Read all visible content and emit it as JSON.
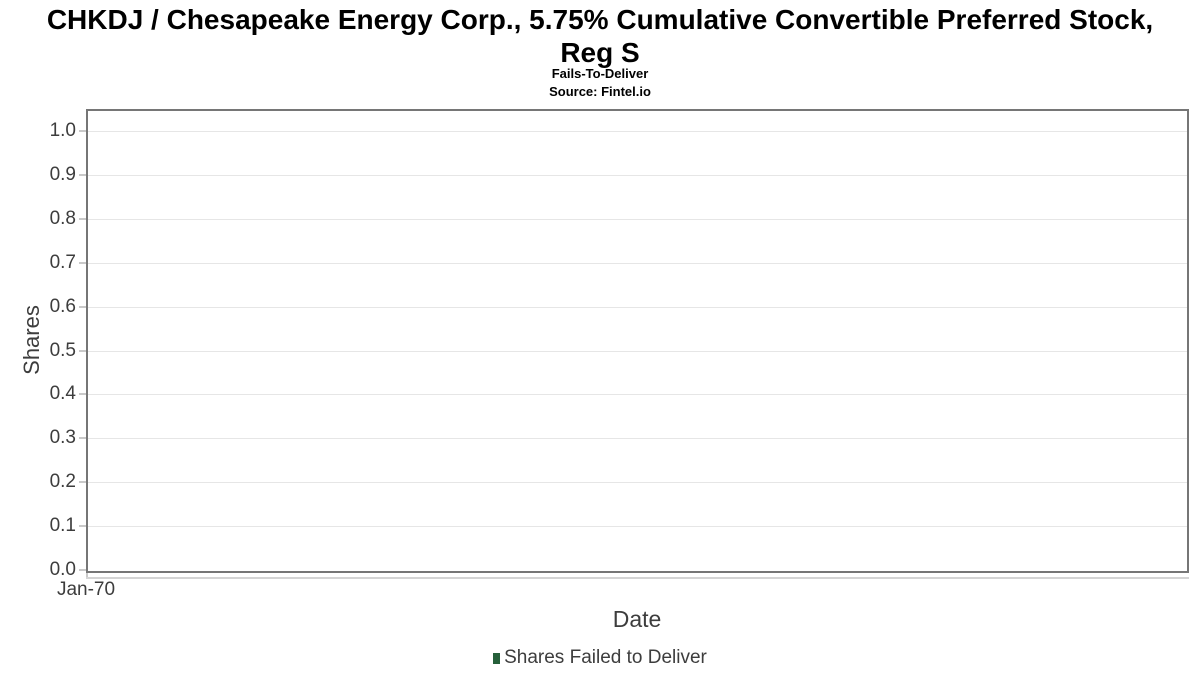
{
  "header": {
    "title_line1": "CHKDJ / Chesapeake Energy Corp., 5.75% Cumulative Convertible Preferred Stock,",
    "title_line2": "Reg S",
    "subtitle": "Fails-To-Deliver",
    "source": "Source: Fintel.io"
  },
  "chart_data": {
    "type": "bar",
    "title": "CHKDJ / Chesapeake Energy Corp., 5.75% Cumulative Convertible Preferred Stock, Reg S",
    "subtitle": "Fails-To-Deliver",
    "source": "Source: Fintel.io",
    "xlabel": "Date",
    "ylabel": "Shares",
    "x_ticks": [
      "Jan-70"
    ],
    "y_ticks": [
      "0.0",
      "0.1",
      "0.2",
      "0.3",
      "0.4",
      "0.5",
      "0.6",
      "0.7",
      "0.8",
      "0.9",
      "1.0"
    ],
    "ylim": [
      0,
      1.05
    ],
    "grid": true,
    "legend_position": "bottom",
    "series": [
      {
        "name": "Shares Failed to Deliver",
        "color": "#26603a",
        "values": []
      }
    ]
  },
  "legend": {
    "items": [
      {
        "label": "Shares Failed to Deliver",
        "color": "#26603a"
      }
    ]
  },
  "colors": {
    "spine": "#767676",
    "gridline": "#e6e6e6",
    "tick": "#c9c9c9",
    "axis_text": "#3d3d3d",
    "series_green": "#26603a"
  }
}
